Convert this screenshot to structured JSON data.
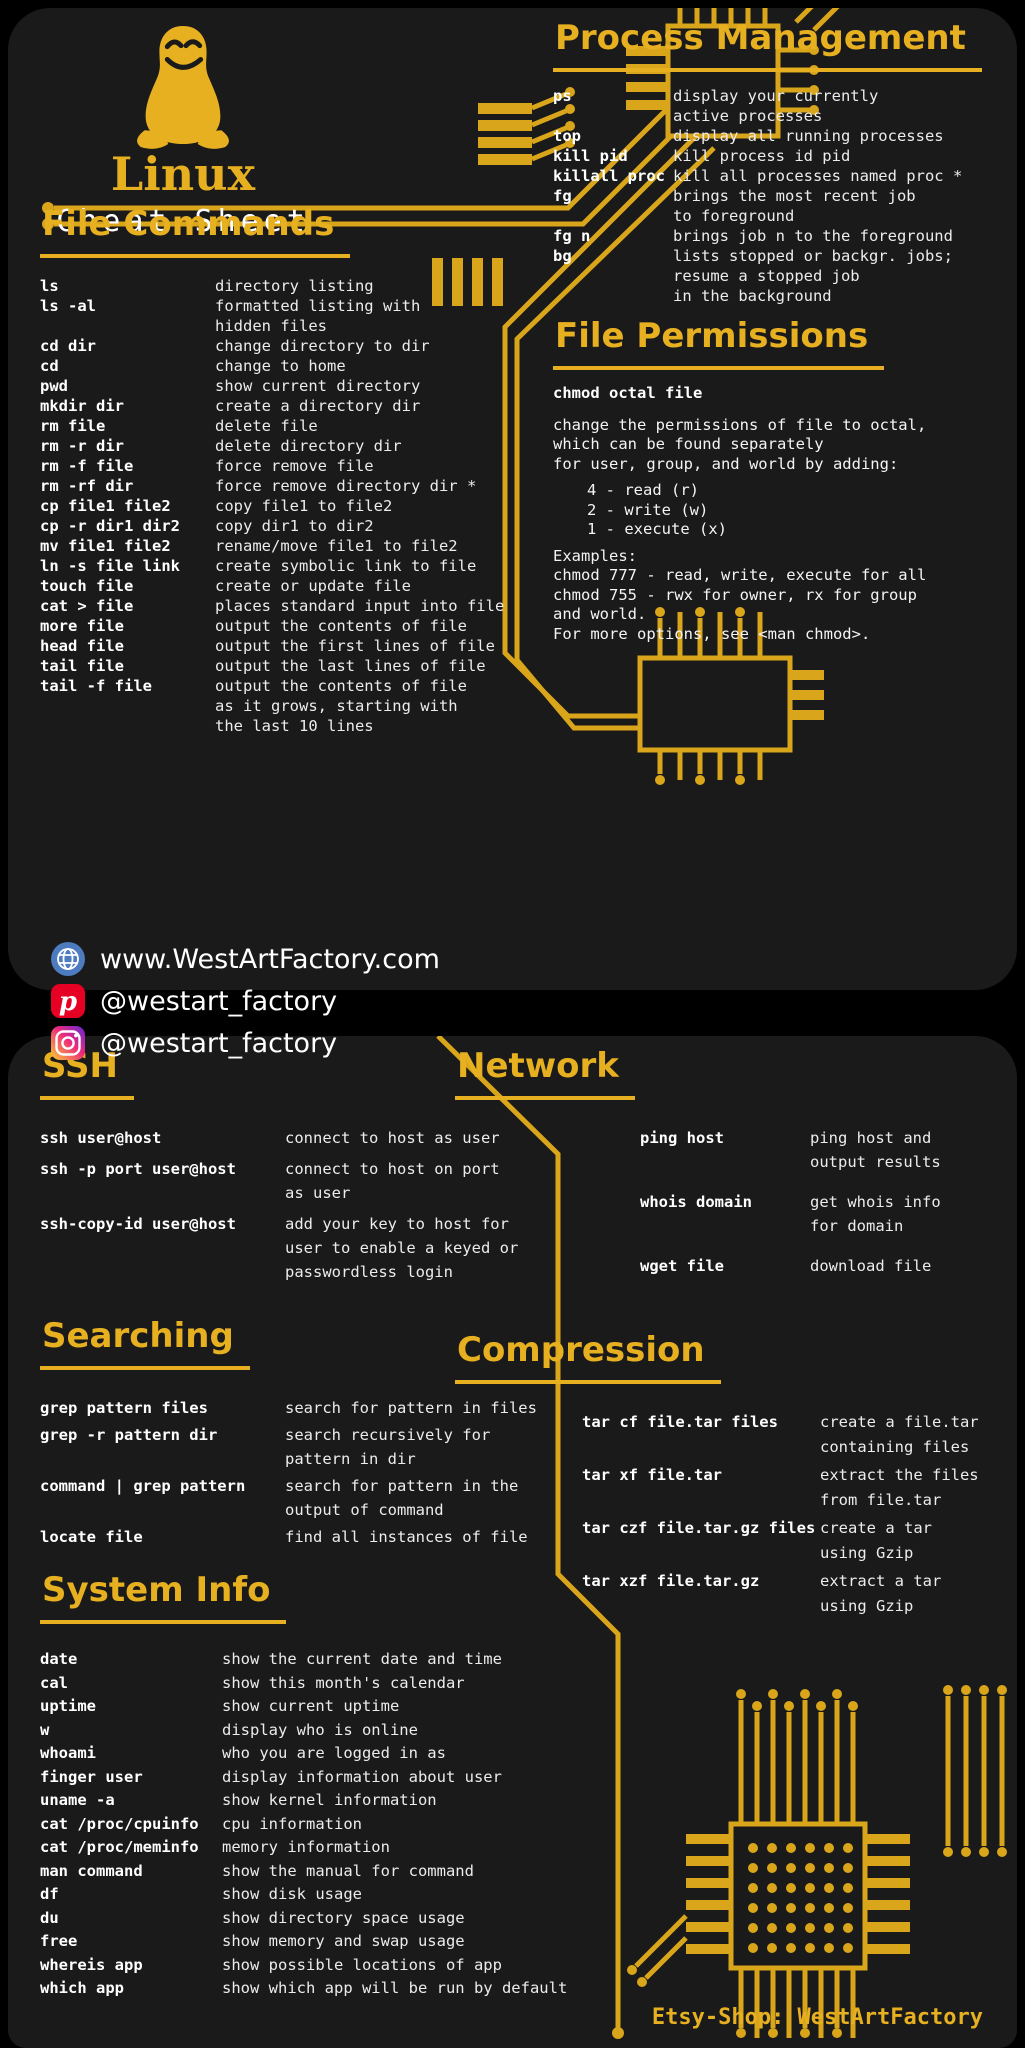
{
  "brand": {
    "logo_title": "Linux",
    "logo_subtitle": "Cheat Sheet",
    "logo_icon": "tux-penguin-icon"
  },
  "social": {
    "website": "www.WestArtFactory.com",
    "pinterest": "@westart_factory",
    "instagram": "@westart_factory",
    "icons": [
      "globe-icon",
      "pinterest-icon",
      "instagram-icon"
    ]
  },
  "footer": {
    "etsy_shop": "Etsy-Shop: WestArtFactory"
  },
  "colors": {
    "gold": "#E6B020",
    "card_background": "#1a1a1a",
    "page_background": "#000000",
    "text": "#FFFFFF",
    "globe_blue": "#4C7BBF",
    "pinterest_red": "#E60023",
    "instagram_gradient": [
      "#F9CE34",
      "#EE2A7B",
      "#6228D7"
    ]
  },
  "sections": {
    "file_commands": {
      "title": "File Commands",
      "rows": [
        {
          "cmd": "ls",
          "desc": "directory listing"
        },
        {
          "cmd": "ls -al",
          "desc": "formatted listing with\nhidden files"
        },
        {
          "cmd": "cd dir",
          "desc": "change directory to dir"
        },
        {
          "cmd": "cd",
          "desc": "change to home"
        },
        {
          "cmd": "pwd",
          "desc": "show current directory"
        },
        {
          "cmd": "mkdir dir",
          "desc": "create a directory dir"
        },
        {
          "cmd": "rm file",
          "desc": "delete file"
        },
        {
          "cmd": "rm -r dir",
          "desc": "delete directory dir"
        },
        {
          "cmd": "rm -f file",
          "desc": "force remove file"
        },
        {
          "cmd": "rm -rf dir",
          "desc": "force remove directory dir *"
        },
        {
          "cmd": "cp file1 file2",
          "desc": "copy file1 to file2"
        },
        {
          "cmd": "cp -r dir1 dir2",
          "desc": "copy dir1 to dir2"
        },
        {
          "cmd": "mv file1 file2",
          "desc": "rename/move file1 to file2"
        },
        {
          "cmd": "ln -s file link",
          "desc": "create symbolic link to file"
        },
        {
          "cmd": "touch file",
          "desc": "create or update file"
        },
        {
          "cmd": "cat > file",
          "desc": "places standard input into file"
        },
        {
          "cmd": "more file",
          "desc": "output the contents of file"
        },
        {
          "cmd": "head file",
          "desc": "output the first lines of file"
        },
        {
          "cmd": "tail file",
          "desc": "output the last lines of file"
        },
        {
          "cmd": "tail -f file",
          "desc": "output the contents of file\nas it grows, starting with\nthe last 10 lines"
        }
      ]
    },
    "process_management": {
      "title": "Process Management",
      "rows": [
        {
          "cmd": "ps",
          "desc": "display your currently\nactive processes"
        },
        {
          "cmd": "top",
          "desc": "display all running processes"
        },
        {
          "cmd": "kill pid",
          "desc": "kill process id pid"
        },
        {
          "cmd": "killall proc",
          "desc": "kill all processes named proc *"
        },
        {
          "cmd": "fg",
          "desc": "brings the most recent job\nto foreground"
        },
        {
          "cmd": "fg n",
          "desc": "brings job n to the foreground"
        },
        {
          "cmd": "bg",
          "desc": "lists stopped or backgr. jobs;\nresume a stopped job\nin the background"
        }
      ]
    },
    "file_permissions": {
      "title": "File Permissions",
      "lines": [
        {
          "style": "cmdline",
          "text": "chmod octal file"
        },
        {
          "style": "body",
          "text": "change the permissions of file to octal,\nwhich can be found separately\nfor user, group, and world by adding:"
        },
        {
          "style": "indent",
          "text": "4 - read (r)\n2 - write (w)\n1 - execute (x)"
        },
        {
          "style": "body",
          "text": "Examples:\nchmod 777 - read, write, execute for all\nchmod 755 - rwx for owner, rx for group\nand world.\nFor more options, see <man chmod>."
        }
      ]
    },
    "ssh": {
      "title": "SSH",
      "rows": [
        {
          "cmd": "ssh user@host",
          "desc": "connect to host as user"
        },
        {
          "cmd": "ssh -p port user@host",
          "desc": "connect to host on port\nas user"
        },
        {
          "cmd": "ssh-copy-id user@host",
          "desc": "add your key to host for\nuser to enable a keyed or\npasswordless login"
        }
      ]
    },
    "searching": {
      "title": "Searching",
      "rows": [
        {
          "cmd": "grep pattern files",
          "desc": "search for pattern in files"
        },
        {
          "cmd": "grep -r pattern dir",
          "desc": "search recursively for\npattern in dir"
        },
        {
          "cmd": "command | grep pattern",
          "desc": "search for pattern in the\noutput of command"
        },
        {
          "cmd": "locate file",
          "desc": "find all instances of file"
        }
      ]
    },
    "system_info": {
      "title": "System Info",
      "rows": [
        {
          "cmd": "date",
          "desc": "show the current date and time"
        },
        {
          "cmd": "cal",
          "desc": "show this month's calendar"
        },
        {
          "cmd": "uptime",
          "desc": "show current uptime"
        },
        {
          "cmd": "w",
          "desc": "display who is online"
        },
        {
          "cmd": "whoami",
          "desc": "who you are logged in as"
        },
        {
          "cmd": "finger user",
          "desc": "display information about user"
        },
        {
          "cmd": "uname -a",
          "desc": "show kernel information"
        },
        {
          "cmd": "cat /proc/cpuinfo",
          "desc": "cpu information"
        },
        {
          "cmd": "cat /proc/meminfo",
          "desc": "memory information"
        },
        {
          "cmd": "man command",
          "desc": "show the manual for command"
        },
        {
          "cmd": "df",
          "desc": "show disk usage"
        },
        {
          "cmd": "du",
          "desc": "show directory space usage"
        },
        {
          "cmd": "free",
          "desc": "show memory and swap usage"
        },
        {
          "cmd": "whereis app",
          "desc": "show possible locations of app"
        },
        {
          "cmd": "which app",
          "desc": "show which app will be run by default"
        }
      ]
    },
    "network": {
      "title": "Network",
      "rows": [
        {
          "cmd": "ping host",
          "desc": "ping host and\noutput results"
        },
        {
          "cmd": "whois domain",
          "desc": "get whois info\nfor domain"
        },
        {
          "cmd": "wget file",
          "desc": "download file"
        }
      ]
    },
    "compression": {
      "title": "Compression",
      "rows": [
        {
          "cmd": "tar cf file.tar files",
          "desc": "create a file.tar\ncontaining files"
        },
        {
          "cmd": "tar xf file.tar",
          "desc": "extract the files\nfrom file.tar"
        },
        {
          "cmd": "tar czf file.tar.gz files",
          "desc": "create a tar\nusing Gzip"
        },
        {
          "cmd": "tar xzf file.tar.gz",
          "desc": "extract a tar\nusing Gzip"
        }
      ]
    }
  }
}
